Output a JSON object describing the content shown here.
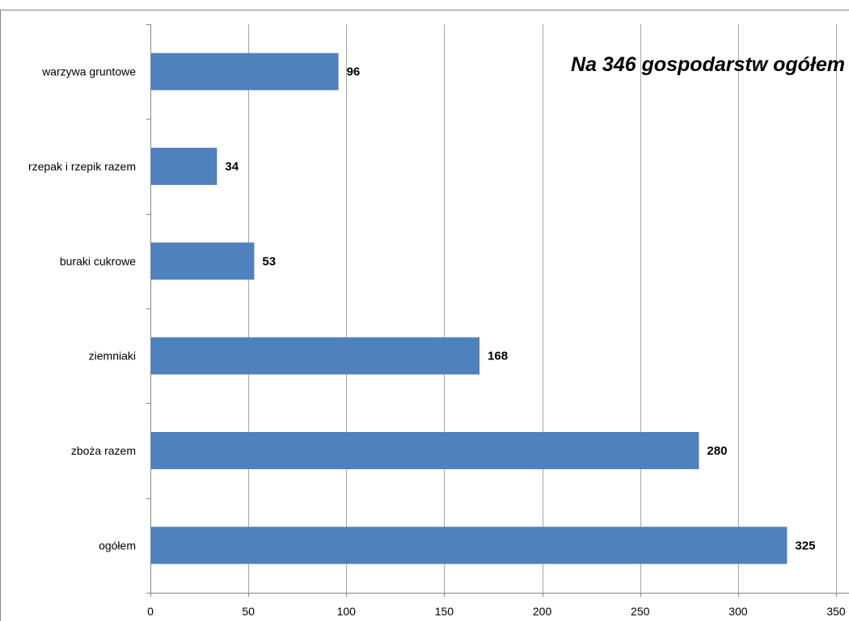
{
  "chart_data": {
    "type": "bar",
    "orientation": "horizontal",
    "title": "Na 346 gospodarstw ogółem",
    "categories": [
      "warzywa gruntowe",
      "rzepak i rzepik razem",
      "buraki cukrowe",
      "ziemniaki",
      "zboża razem",
      "ogółem"
    ],
    "values": [
      96,
      34,
      53,
      168,
      280,
      325
    ],
    "xlim": [
      0,
      350
    ],
    "xticks": [
      0,
      50,
      100,
      150,
      200,
      250,
      300,
      350
    ],
    "xlabel": "",
    "ylabel": "",
    "grid": "vertical",
    "legend": "none",
    "bar_color": "#4F81BD",
    "grid_color": "#A6A6A6",
    "border_color": "#868686"
  }
}
